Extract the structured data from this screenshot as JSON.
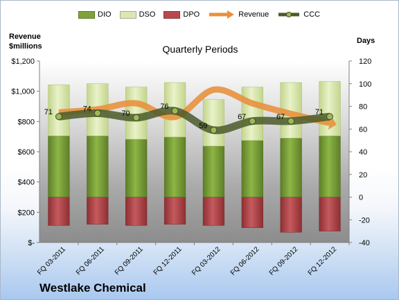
{
  "company": "Westlake Chemical",
  "chart_data": {
    "type": "bar",
    "subtitle": "Quarterly Periods",
    "left_axis_title_lines": [
      "Revenue",
      "$millions"
    ],
    "right_axis_title": "Days",
    "categories": [
      "FQ 03-2011",
      "FQ 06-2011",
      "FQ 09-2011",
      "FQ 12-2011",
      "FQ 03-2012",
      "FQ 06-2012",
      "FQ 09-2012",
      "FQ 12-2012"
    ],
    "left_axis": {
      "min": 0,
      "max": 1200,
      "ticks": [
        0,
        200,
        400,
        600,
        800,
        1000,
        1200
      ],
      "tick_labels": [
        "$-",
        "$200",
        "$400",
        "$600",
        "$800",
        "$1,000",
        "$1,200"
      ]
    },
    "right_axis": {
      "min": -40,
      "max": 120,
      "ticks": [
        -40,
        -20,
        0,
        20,
        40,
        60,
        80,
        100,
        120
      ],
      "tick_labels": [
        "-40",
        "-20",
        "0",
        "20",
        "40",
        "60",
        "80",
        "100",
        "120"
      ]
    },
    "series": [
      {
        "name": "DIO",
        "kind": "bar",
        "axis": "right",
        "color": "#7ea33a",
        "values": [
          54,
          54,
          51,
          53,
          45,
          50,
          52,
          54
        ]
      },
      {
        "name": "DSO",
        "kind": "bar_stacked",
        "axis": "right",
        "color": "#dbe8b6",
        "values": [
          45,
          46,
          46,
          48,
          41,
          47,
          49,
          48
        ]
      },
      {
        "name": "DPO",
        "kind": "bar_negative",
        "axis": "right",
        "color": "#b84a4e",
        "values": [
          -25,
          -24,
          -25,
          -24,
          -25,
          -27,
          -31,
          -30
        ]
      },
      {
        "name": "Revenue",
        "kind": "line",
        "axis": "left",
        "color": "#e8913e",
        "values": [
          860,
          880,
          920,
          830,
          1010,
          920,
          850,
          790
        ]
      },
      {
        "name": "CCC",
        "kind": "line",
        "axis": "right",
        "color": "#5d6e34",
        "values": [
          71,
          74,
          70,
          76,
          59,
          67,
          67,
          71
        ],
        "labels": [
          "71",
          "74",
          "70",
          "76",
          "59",
          "67",
          "67",
          "71"
        ]
      }
    ],
    "legend_position": "top",
    "grid": false
  }
}
